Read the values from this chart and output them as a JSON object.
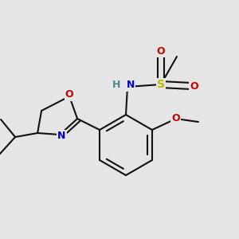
{
  "bg": "#e5e5e5",
  "bc": "#111111",
  "bw": 1.5,
  "atom_colors": {
    "O": "#cc0000",
    "N": "#0000cc",
    "S": "#bbbb00",
    "H": "#4a8a8a",
    "C": "#111111"
  },
  "afs": 8.5,
  "figsize": [
    3.0,
    3.0
  ],
  "dpi": 100,
  "xlim": [
    0,
    300
  ],
  "ylim": [
    0,
    300
  ]
}
